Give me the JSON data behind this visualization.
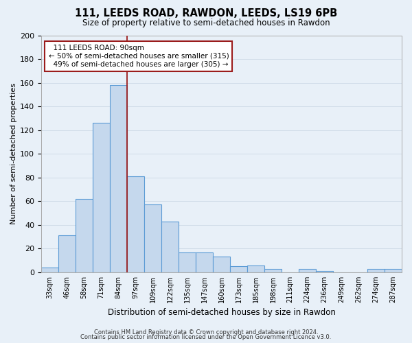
{
  "title": "111, LEEDS ROAD, RAWDON, LEEDS, LS19 6PB",
  "subtitle": "Size of property relative to semi-detached houses in Rawdon",
  "xlabel": "Distribution of semi-detached houses by size in Rawdon",
  "ylabel": "Number of semi-detached properties",
  "categories": [
    "33sqm",
    "46sqm",
    "58sqm",
    "71sqm",
    "84sqm",
    "97sqm",
    "109sqm",
    "122sqm",
    "135sqm",
    "147sqm",
    "160sqm",
    "173sqm",
    "185sqm",
    "198sqm",
    "211sqm",
    "224sqm",
    "236sqm",
    "249sqm",
    "262sqm",
    "274sqm",
    "287sqm"
  ],
  "values": [
    4,
    31,
    62,
    126,
    158,
    81,
    57,
    43,
    17,
    17,
    13,
    5,
    6,
    3,
    0,
    3,
    1,
    0,
    0,
    3,
    3
  ],
  "bar_color": "#c5d8ed",
  "bar_edge_color": "#5b9bd5",
  "ylim": [
    0,
    200
  ],
  "yticks": [
    0,
    20,
    40,
    60,
    80,
    100,
    120,
    140,
    160,
    180,
    200
  ],
  "property_label": "111 LEEDS ROAD: 90sqm",
  "smaller_pct": 50,
  "smaller_count": 315,
  "larger_pct": 49,
  "larger_count": 305,
  "vline_x": 4.5,
  "vline_color": "#9b1c1c",
  "annotation_box_edge_color": "#9b1c1c",
  "footer_line1": "Contains HM Land Registry data © Crown copyright and database right 2024.",
  "footer_line2": "Contains public sector information licensed under the Open Government Licence v3.0.",
  "bg_color": "#e8f0f8",
  "grid_color": "#d0dce8",
  "title_fontsize": 10.5,
  "subtitle_fontsize": 8.5
}
